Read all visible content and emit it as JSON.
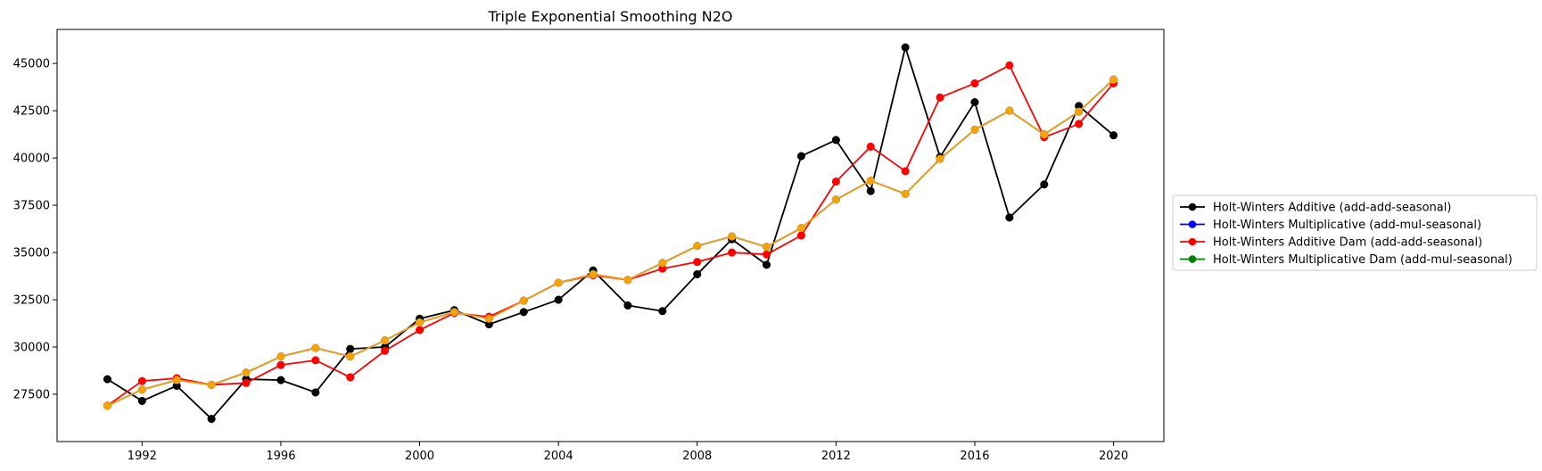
{
  "chart_data": {
    "type": "line",
    "title": "Triple Exponential Smoothing N2O",
    "xlabel": "",
    "ylabel": "",
    "x": [
      1991,
      1992,
      1993,
      1994,
      1995,
      1996,
      1997,
      1998,
      1999,
      2000,
      2001,
      2002,
      2003,
      2004,
      2005,
      2006,
      2007,
      2008,
      2009,
      2010,
      2011,
      2012,
      2013,
      2014,
      2015,
      2016,
      2017,
      2018,
      2019,
      2020
    ],
    "xlim": [
      1989.55,
      2021.45
    ],
    "ylim": [
      25000,
      46800
    ],
    "x_ticks": [
      1992,
      1996,
      2000,
      2004,
      2008,
      2012,
      2016,
      2020
    ],
    "x_tick_labels": [
      "1992",
      "1996",
      "2000",
      "2004",
      "2008",
      "2012",
      "2016",
      "2020"
    ],
    "y_ticks": [
      27500,
      30000,
      32500,
      35000,
      37500,
      40000,
      42500,
      45000
    ],
    "y_tick_labels": [
      "27500",
      "30000",
      "32500",
      "35000",
      "37500",
      "40000",
      "42500",
      "45000"
    ],
    "grid": false,
    "legend_position": "outside-right",
    "series": [
      {
        "name": "Holt-Winters Additive (add-add-seasonal)",
        "color": "#000000",
        "values": [
          28300,
          27150,
          27950,
          26200,
          28300,
          28250,
          27600,
          29900,
          30000,
          31500,
          31950,
          31200,
          31850,
          32500,
          34050,
          32200,
          31900,
          33850,
          35700,
          34350,
          40100,
          40950,
          38250,
          45850,
          40050,
          42950,
          36850,
          38600,
          42750,
          41200
        ]
      },
      {
        "name": "Holt-Winters Multiplicative (add-mul-seasonal)",
        "color": "#0000ff",
        "values": [
          26900,
          27750,
          28250,
          28000,
          28650,
          29500,
          29950,
          29500,
          30350,
          31300,
          31850,
          31500,
          32450,
          33400,
          33850,
          33550,
          34450,
          35350,
          35850,
          35300,
          36300,
          37800,
          38800,
          38100,
          39950,
          41500,
          42500,
          41250,
          42450,
          44150
        ]
      },
      {
        "name": "Holt-Winters Additive Dam (add-add-seasonal)",
        "color": "#ff0000",
        "values": [
          26900,
          28200,
          28350,
          28000,
          28100,
          29050,
          29300,
          28400,
          29800,
          30900,
          31800,
          31600,
          32450,
          33400,
          33800,
          33550,
          34150,
          34500,
          35000,
          34900,
          35900,
          38750,
          40600,
          39300,
          43200,
          43950,
          44900,
          41100,
          41800,
          43950
        ]
      },
      {
        "name": "Holt-Winters Multiplicative Dam (add-mul-seasonal)",
        "color": "#008000",
        "legend_marker_color": "#008000",
        "display_color": "#f0a30a",
        "values": [
          26900,
          27750,
          28250,
          28000,
          28650,
          29500,
          29950,
          29500,
          30350,
          31300,
          31850,
          31500,
          32450,
          33400,
          33850,
          33550,
          34450,
          35350,
          35850,
          35300,
          36300,
          37800,
          38800,
          38100,
          39950,
          41500,
          42500,
          41250,
          42450,
          44150
        ]
      }
    ]
  }
}
